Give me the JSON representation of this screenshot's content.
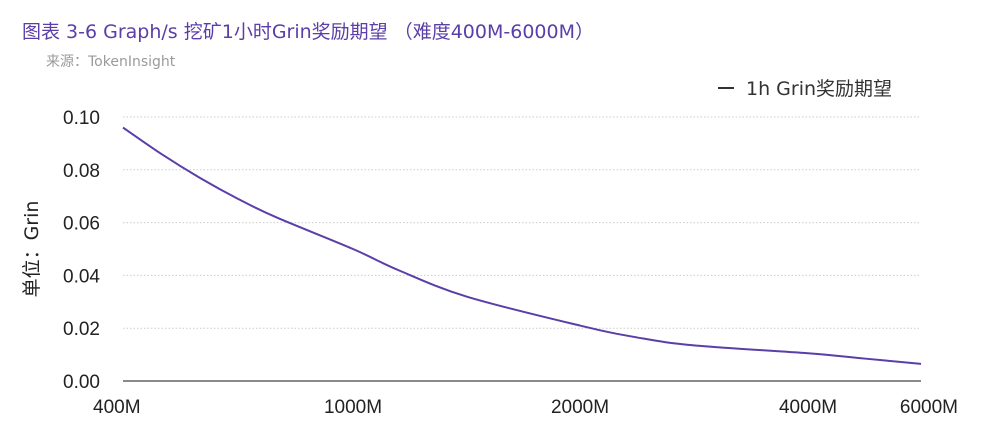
{
  "title": "图表 3-6 Graph/s 挖矿1小时Grin奖励期望 （难度400M-6000M）",
  "source": "来源：TokenInsight",
  "colors": {
    "title": "#5b3ea8",
    "line": "#5b3ea8",
    "grid": "#cccccc",
    "axis": "#444444"
  },
  "chart_data": {
    "type": "line",
    "title": "图表 3-6 Graph/s 挖矿1小时Grin奖励期望 （难度400M-6000M）",
    "ylabel": "单位：Grin",
    "xlabel": "",
    "legend": "top-right",
    "grid": true,
    "ylim": [
      0,
      0.1
    ],
    "yticks": [
      "0.00",
      "0.02",
      "0.04",
      "0.06",
      "0.08",
      "0.10"
    ],
    "xticks": [
      {
        "label": "400M",
        "value": 400
      },
      {
        "label": "1000M",
        "value": 1000
      },
      {
        "label": "2000M",
        "value": 2000
      },
      {
        "label": "4000M",
        "value": 4000
      },
      {
        "label": "6000M",
        "value": 6000
      }
    ],
    "series": [
      {
        "name": "1h Grin奖励期望",
        "x": [
          400,
          500,
          600,
          700,
          800,
          1000,
          1200,
          1500,
          2000,
          2500,
          3000,
          4000,
          5000,
          6000
        ],
        "y": [
          0.096,
          0.086,
          0.077,
          0.069,
          0.062,
          0.05,
          0.042,
          0.032,
          0.021,
          0.0165,
          0.0135,
          0.0105,
          0.0085,
          0.0065
        ]
      }
    ]
  }
}
